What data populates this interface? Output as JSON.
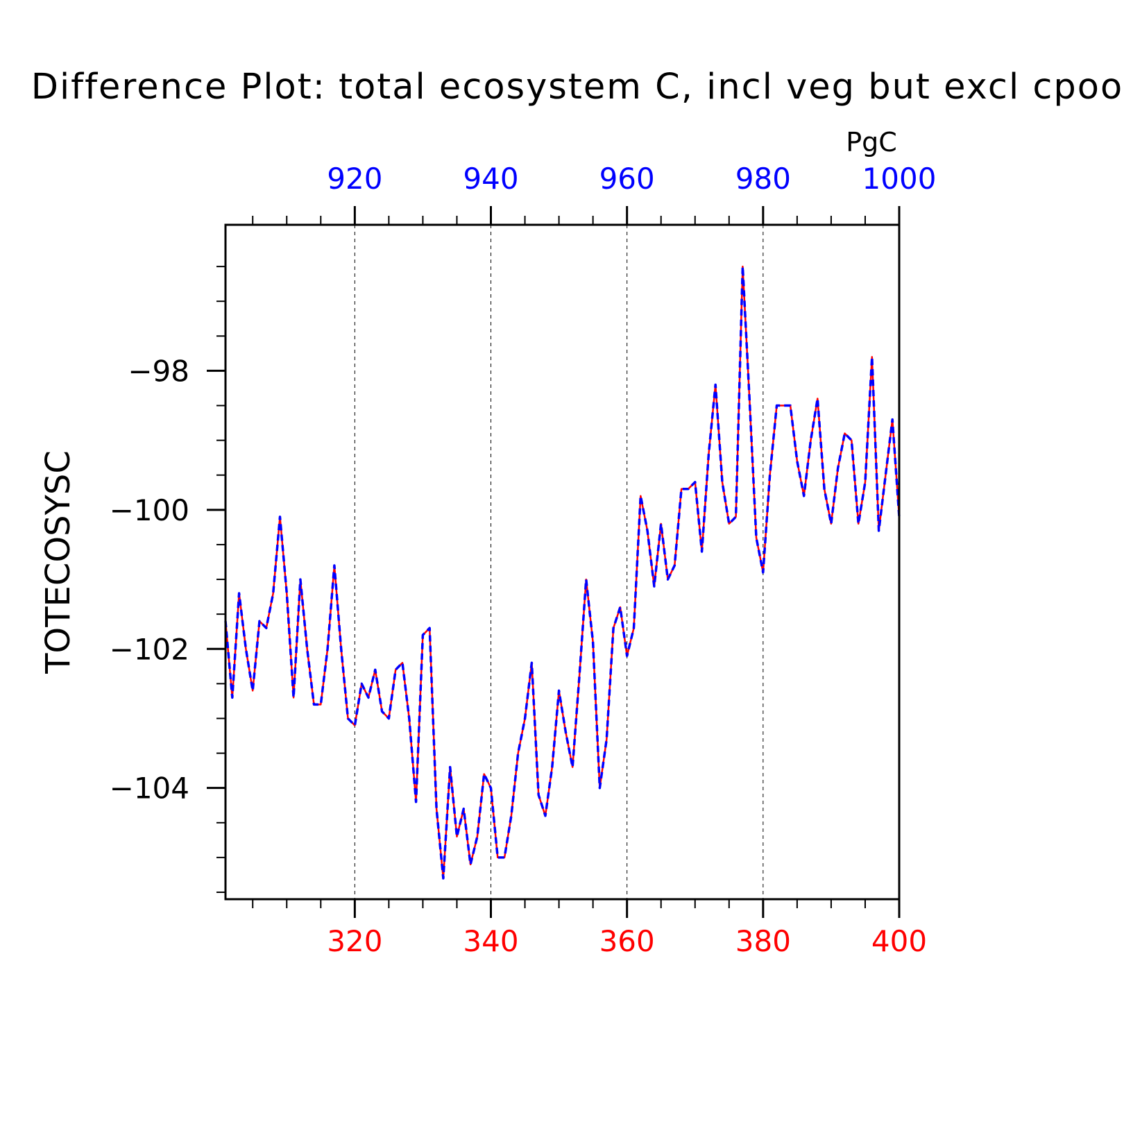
{
  "chart_data": {
    "type": "line",
    "title": "Difference Plot: total ecosystem C, incl veg but excl cpool",
    "ylabel": "TOTECOSYSC",
    "unit_label": "PgC",
    "xlim": [
      301,
      400
    ],
    "ylim": [
      -105.6,
      -95.9
    ],
    "x_ticks": [
      320,
      340,
      360,
      380,
      400
    ],
    "x_top_ticks": [
      920,
      940,
      960,
      980,
      1000
    ],
    "y_ticks": [
      -104,
      -102,
      -100,
      -98
    ],
    "grid": "vertical dashed at major x ticks",
    "colors": {
      "bottom_axis": "#ff0000",
      "top_axis": "#0000ff",
      "series_case": "#ff0000",
      "series_control": "#0000ff"
    },
    "x": [
      301,
      302,
      303,
      304,
      305,
      306,
      307,
      308,
      309,
      310,
      311,
      312,
      313,
      314,
      315,
      316,
      317,
      318,
      319,
      320,
      321,
      322,
      323,
      324,
      325,
      326,
      327,
      328,
      329,
      330,
      331,
      332,
      333,
      334,
      335,
      336,
      337,
      338,
      339,
      340,
      341,
      342,
      343,
      344,
      345,
      346,
      347,
      348,
      349,
      350,
      351,
      352,
      353,
      354,
      355,
      356,
      357,
      358,
      359,
      360,
      361,
      362,
      363,
      364,
      365,
      366,
      367,
      368,
      369,
      370,
      371,
      372,
      373,
      374,
      375,
      376,
      377,
      378,
      379,
      380,
      381,
      382,
      383,
      384,
      385,
      386,
      387,
      388,
      389,
      390,
      391,
      392,
      393,
      394,
      395,
      396,
      397,
      398,
      399,
      400
    ],
    "series": [
      {
        "values": [
          -101.6,
          -102.7,
          -101.2,
          -102.0,
          -102.6,
          -101.6,
          -101.7,
          -101.2,
          -100.1,
          -101.2,
          -102.7,
          -101.0,
          -102.0,
          -102.8,
          -102.8,
          -102.0,
          -100.8,
          -102.0,
          -103.0,
          -103.1,
          -102.5,
          -102.7,
          -102.3,
          -102.9,
          -103.0,
          -102.3,
          -102.2,
          -103.0,
          -104.2,
          -101.8,
          -101.7,
          -104.3,
          -105.3,
          -103.7,
          -104.7,
          -104.3,
          -105.1,
          -104.7,
          -103.8,
          -104.0,
          -105.0,
          -105.0,
          -104.4,
          -103.5,
          -103.0,
          -102.2,
          -104.1,
          -104.4,
          -103.7,
          -102.6,
          -103.2,
          -103.7,
          -102.4,
          -101.0,
          -101.9,
          -104.0,
          -103.3,
          -101.7,
          -101.4,
          -102.1,
          -101.7,
          -99.8,
          -100.3,
          -101.1,
          -100.2,
          -101.0,
          -100.8,
          -99.7,
          -99.7,
          -99.6,
          -100.6,
          -99.2,
          -98.2,
          -99.6,
          -100.2,
          -100.1,
          -96.5,
          -98.4,
          -100.4,
          -100.9,
          -99.5,
          -98.5,
          -98.5,
          -98.5,
          -99.3,
          -99.8,
          -99.0,
          -98.4,
          -99.7,
          -100.2,
          -99.4,
          -98.9,
          -99.0,
          -100.2,
          -99.6,
          -97.8,
          -100.3,
          -99.5,
          -98.7,
          -100.1
        ]
      }
    ]
  }
}
